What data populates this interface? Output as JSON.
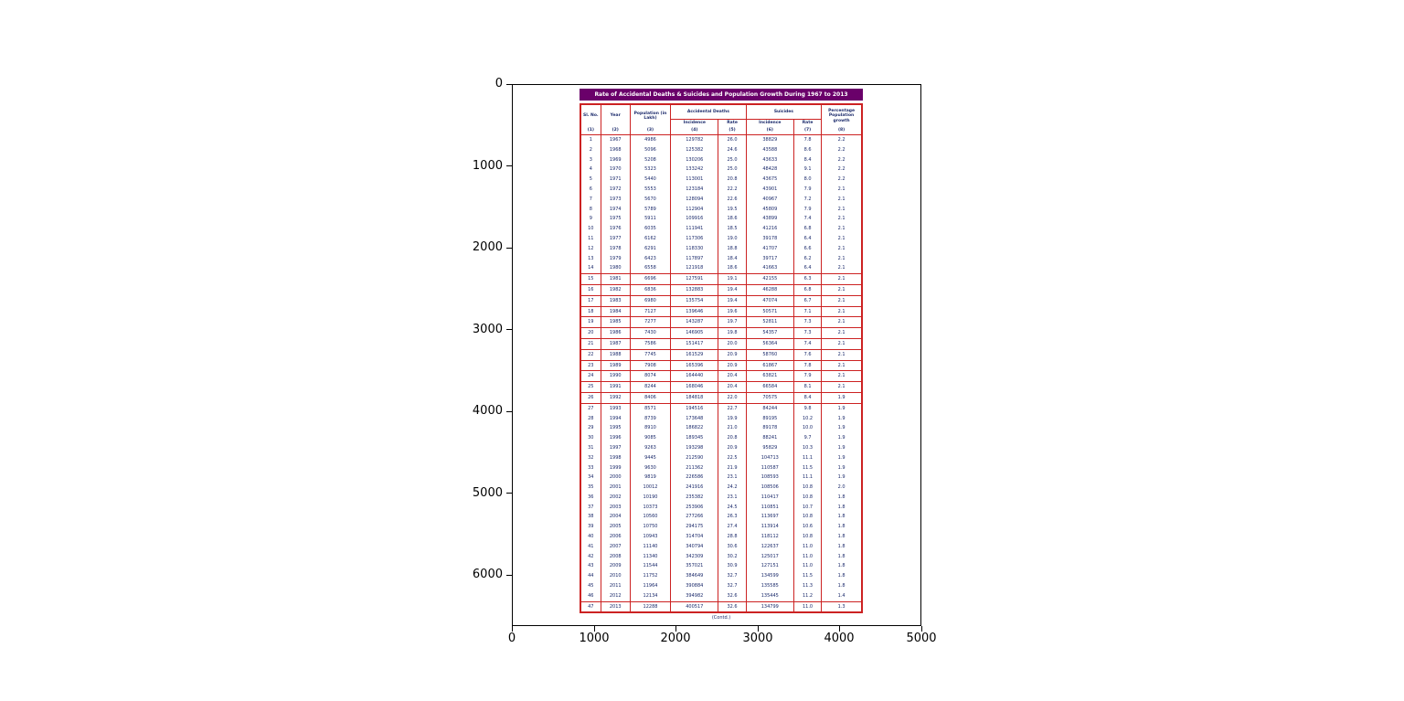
{
  "figure": {
    "x_ticks": [
      "0",
      "1000",
      "2000",
      "3000",
      "4000",
      "5000"
    ],
    "y_ticks": [
      "0",
      "1000",
      "2000",
      "3000",
      "4000",
      "5000",
      "6000"
    ]
  },
  "image": {
    "title": "Rate of Accidental Deaths & Suicides and Population Growth During 1967 to 2013",
    "caption": "(Contd.)",
    "colors": {
      "title_bg": "#6a006a",
      "border": "#cc2222",
      "text": "#1b2a6b"
    }
  },
  "table": {
    "header": {
      "sl_no": "Sl. No.",
      "year": "Year",
      "population": "Population (in Lakh)",
      "accidental_deaths": "Accidental Deaths",
      "suicides": "Suicides",
      "incidence": "Incidence",
      "rate": "Rate",
      "growth": "Percentage Population growth"
    }
  },
  "chart_data": {
    "type": "table",
    "title": "Rate of Accidental Deaths & Suicides and Population Growth During 1967 to 2013",
    "columns": [
      "Sl. No.",
      "Year",
      "Population (in Lakh)",
      "Accidental Deaths - Incidence",
      "Accidental Deaths - Rate",
      "Suicides - Incidence",
      "Suicides - Rate",
      "Percentage Population growth"
    ],
    "column_numbers": [
      "(1)",
      "(2)",
      "(3)",
      "(4)",
      "(5)",
      "(6)",
      "(7)",
      "(8)"
    ],
    "rows": [
      [
        "1",
        "1967",
        "4986",
        "129782",
        "26.0",
        "38829",
        "7.8",
        "2.2"
      ],
      [
        "2",
        "1968",
        "5096",
        "125382",
        "24.6",
        "43588",
        "8.6",
        "2.2"
      ],
      [
        "3",
        "1969",
        "5208",
        "130206",
        "25.0",
        "43633",
        "8.4",
        "2.2"
      ],
      [
        "4",
        "1970",
        "5323",
        "133242",
        "25.0",
        "48428",
        "9.1",
        "2.2"
      ],
      [
        "5",
        "1971",
        "5440",
        "113001",
        "20.8",
        "43675",
        "8.0",
        "2.2"
      ],
      [
        "6",
        "1972",
        "5553",
        "123184",
        "22.2",
        "43901",
        "7.9",
        "2.1"
      ],
      [
        "7",
        "1973",
        "5670",
        "128094",
        "22.6",
        "40967",
        "7.2",
        "2.1"
      ],
      [
        "8",
        "1974",
        "5789",
        "112904",
        "19.5",
        "45809",
        "7.9",
        "2.1"
      ],
      [
        "9",
        "1975",
        "5911",
        "109916",
        "18.6",
        "43899",
        "7.4",
        "2.1"
      ],
      [
        "10",
        "1976",
        "6035",
        "111941",
        "18.5",
        "41216",
        "6.8",
        "2.1"
      ],
      [
        "11",
        "1977",
        "6162",
        "117306",
        "19.0",
        "39178",
        "6.4",
        "2.1"
      ],
      [
        "12",
        "1978",
        "6291",
        "118330",
        "18.8",
        "41707",
        "6.6",
        "2.1"
      ],
      [
        "13",
        "1979",
        "6423",
        "117897",
        "18.4",
        "39717",
        "6.2",
        "2.1"
      ],
      [
        "14",
        "1980",
        "6558",
        "121918",
        "18.6",
        "41663",
        "6.4",
        "2.1"
      ],
      [
        "15",
        "1981",
        "6696",
        "127591",
        "19.1",
        "42155",
        "6.3",
        "2.1"
      ],
      [
        "16",
        "1982",
        "6836",
        "132883",
        "19.4",
        "46288",
        "6.8",
        "2.1"
      ],
      [
        "17",
        "1983",
        "6980",
        "135754",
        "19.4",
        "47074",
        "6.7",
        "2.1"
      ],
      [
        "18",
        "1984",
        "7127",
        "139646",
        "19.6",
        "50571",
        "7.1",
        "2.1"
      ],
      [
        "19",
        "1985",
        "7277",
        "143287",
        "19.7",
        "52811",
        "7.3",
        "2.1"
      ],
      [
        "20",
        "1986",
        "7430",
        "146905",
        "19.8",
        "54357",
        "7.3",
        "2.1"
      ],
      [
        "21",
        "1987",
        "7586",
        "151417",
        "20.0",
        "56364",
        "7.4",
        "2.1"
      ],
      [
        "22",
        "1988",
        "7745",
        "161529",
        "20.9",
        "58760",
        "7.6",
        "2.1"
      ],
      [
        "23",
        "1989",
        "7908",
        "165396",
        "20.9",
        "61867",
        "7.8",
        "2.1"
      ],
      [
        "24",
        "1990",
        "8074",
        "164440",
        "20.4",
        "63821",
        "7.9",
        "2.1"
      ],
      [
        "25",
        "1991",
        "8244",
        "168046",
        "20.4",
        "66584",
        "8.1",
        "2.1"
      ],
      [
        "26",
        "1992",
        "8406",
        "184818",
        "22.0",
        "70575",
        "8.4",
        "1.9"
      ],
      [
        "27",
        "1993",
        "8571",
        "194516",
        "22.7",
        "84244",
        "9.8",
        "1.9"
      ],
      [
        "28",
        "1994",
        "8739",
        "173648",
        "19.9",
        "89195",
        "10.2",
        "1.9"
      ],
      [
        "29",
        "1995",
        "8910",
        "186822",
        "21.0",
        "89178",
        "10.0",
        "1.9"
      ],
      [
        "30",
        "1996",
        "9085",
        "189345",
        "20.8",
        "88241",
        "9.7",
        "1.9"
      ],
      [
        "31",
        "1997",
        "9263",
        "193298",
        "20.9",
        "95829",
        "10.3",
        "1.9"
      ],
      [
        "32",
        "1998",
        "9445",
        "212590",
        "22.5",
        "104713",
        "11.1",
        "1.9"
      ],
      [
        "33",
        "1999",
        "9630",
        "211362",
        "21.9",
        "110587",
        "11.5",
        "1.9"
      ],
      [
        "34",
        "2000",
        "9819",
        "226586",
        "23.1",
        "108593",
        "11.1",
        "1.9"
      ],
      [
        "35",
        "2001",
        "10012",
        "241916",
        "24.2",
        "108506",
        "10.8",
        "2.0"
      ],
      [
        "36",
        "2002",
        "10190",
        "235382",
        "23.1",
        "110417",
        "10.8",
        "1.8"
      ],
      [
        "37",
        "2003",
        "10373",
        "253906",
        "24.5",
        "110851",
        "10.7",
        "1.8"
      ],
      [
        "38",
        "2004",
        "10560",
        "277266",
        "26.3",
        "113697",
        "10.8",
        "1.8"
      ],
      [
        "39",
        "2005",
        "10750",
        "294175",
        "27.4",
        "113914",
        "10.6",
        "1.8"
      ],
      [
        "40",
        "2006",
        "10943",
        "314704",
        "28.8",
        "118112",
        "10.8",
        "1.8"
      ],
      [
        "41",
        "2007",
        "11140",
        "340794",
        "30.6",
        "122637",
        "11.0",
        "1.8"
      ],
      [
        "42",
        "2008",
        "11340",
        "342309",
        "30.2",
        "125017",
        "11.0",
        "1.8"
      ],
      [
        "43",
        "2009",
        "11544",
        "357021",
        "30.9",
        "127151",
        "11.0",
        "1.8"
      ],
      [
        "44",
        "2010",
        "11752",
        "384649",
        "32.7",
        "134599",
        "11.5",
        "1.8"
      ],
      [
        "45",
        "2011",
        "11964",
        "390884",
        "32.7",
        "135585",
        "11.3",
        "1.8"
      ],
      [
        "46",
        "2012",
        "12134",
        "394982",
        "32.6",
        "135445",
        "11.2",
        "1.4"
      ],
      [
        "47",
        "2013",
        "12288",
        "400517",
        "32.6",
        "134799",
        "11.0",
        "1.3"
      ]
    ]
  }
}
